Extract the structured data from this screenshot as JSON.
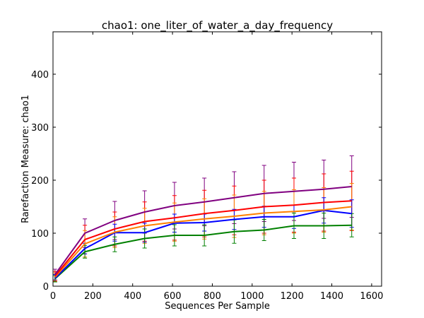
{
  "chart_data": {
    "type": "line",
    "title": "chao1: one_liter_of_water_a_day_frequency",
    "xlabel": "Sequences Per Sample",
    "ylabel": "Rarefaction Measure: chao1",
    "xlim": [
      0,
      1650
    ],
    "ylim": [
      0,
      480
    ],
    "xticks": [
      0,
      200,
      400,
      600,
      800,
      1000,
      1200,
      1400,
      1600
    ],
    "yticks": [
      0,
      100,
      200,
      300,
      400
    ],
    "grid": false,
    "x": [
      10,
      160,
      310,
      460,
      610,
      760,
      910,
      1060,
      1210,
      1360,
      1500
    ],
    "series": [
      {
        "color": "#800080",
        "values": [
          22,
          100,
          124,
          140,
          152,
          159,
          167,
          175,
          179,
          183,
          188
        ],
        "err": [
          10,
          27,
          36,
          40,
          44,
          45,
          49,
          53,
          55,
          55,
          58
        ]
      },
      {
        "color": "#ff0000",
        "values": [
          19,
          88,
          108,
          122,
          129,
          137,
          143,
          150,
          153,
          158,
          161
        ],
        "err": [
          9,
          27,
          32,
          37,
          42,
          44,
          46,
          50,
          51,
          54,
          56
        ]
      },
      {
        "color": "#ff8000",
        "values": [
          17,
          80,
          102,
          114,
          121,
          127,
          132,
          138,
          141,
          144,
          150
        ],
        "err": [
          8,
          25,
          29,
          33,
          36,
          38,
          40,
          41,
          41,
          42,
          44
        ]
      },
      {
        "color": "#0000ff",
        "values": [
          15,
          71,
          101,
          101,
          119,
          120,
          126,
          131,
          131,
          143,
          137
        ],
        "err": [
          7,
          10,
          16,
          18,
          17,
          16,
          19,
          20,
          22,
          24,
          26
        ]
      },
      {
        "color": "#008000",
        "values": [
          14,
          65,
          79,
          90,
          96,
          96,
          103,
          106,
          114,
          114,
          115
        ],
        "err": [
          6,
          12,
          14,
          18,
          20,
          20,
          22,
          20,
          24,
          24,
          22
        ]
      }
    ]
  }
}
